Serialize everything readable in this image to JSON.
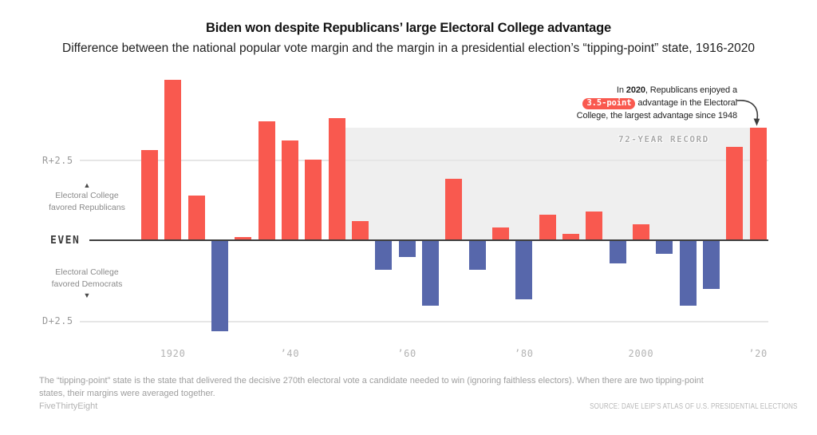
{
  "chart_data": {
    "type": "bar",
    "title": "Biden won despite Republicans’ large Electoral College advantage",
    "subtitle": "Difference between the national popular vote margin and the margin in a presidential election’s “tipping-point” state, 1916-2020",
    "unit": "percentage points; positive = Electoral College favored Republicans, negative = favored Democrats",
    "x": [
      1916,
      1920,
      1924,
      1928,
      1932,
      1936,
      1940,
      1944,
      1948,
      1952,
      1956,
      1960,
      1964,
      1968,
      1972,
      1976,
      1980,
      1984,
      1988,
      1992,
      1996,
      2000,
      2004,
      2008,
      2012,
      2016,
      2020
    ],
    "values": [
      2.8,
      5.0,
      1.4,
      -2.8,
      0.1,
      3.7,
      3.1,
      2.5,
      3.8,
      0.6,
      -0.9,
      -0.5,
      -2.0,
      1.9,
      -0.9,
      0.4,
      -1.8,
      0.8,
      0.2,
      0.9,
      -0.7,
      0.5,
      -0.4,
      -2.0,
      -1.5,
      2.9,
      3.5
    ],
    "ylim": [
      -3.0,
      5.2
    ],
    "grid": "horizontal lines at +2.5 and -2.5",
    "y_ticks": [
      {
        "value": 2.5,
        "label": "R+2.5"
      },
      {
        "value": 0,
        "label": "EVEN"
      },
      {
        "value": -2.5,
        "label": "D+2.5"
      }
    ],
    "x_tick_labels": [
      {
        "year": 1920,
        "label": "1920"
      },
      {
        "year": 1940,
        "label": "’40"
      },
      {
        "year": 1960,
        "label": "’60"
      },
      {
        "year": 1980,
        "label": "’80"
      },
      {
        "year": 2000,
        "label": "2000"
      },
      {
        "year": 2020,
        "label": "’20"
      }
    ],
    "colors": {
      "republican": "#f9594f",
      "democrat": "#5767ab",
      "record_region": "#efefef"
    },
    "direction_labels": {
      "up_icon": "▲",
      "up": [
        "Electoral College",
        "favored Republicans"
      ],
      "down": [
        "Electoral College",
        "favored Democrats"
      ],
      "down_icon": "▼"
    },
    "record_region": {
      "after_year": 1948,
      "through_year": 2020,
      "top_value": 3.5,
      "label": "72-YEAR RECORD"
    }
  },
  "annotation": {
    "line1_pre": "In ",
    "line1_bold": "2020",
    "line1_post": ", Republicans enjoyed a",
    "pill": "3.5-point",
    "line2_post": " advantage in the Electoral",
    "line3": "College, the largest advantage since 1948"
  },
  "footnote": {
    "lines": [
      "The “tipping-point” state is the state that delivered the decisive 270th electoral vote a candidate needed to win (ignoring faithless electors). When there are two tipping-point",
      "states, their margins were averaged together."
    ]
  },
  "footer": {
    "brand": "FiveThirtyEight",
    "source": "SOURCE: DAVE LEIP’S ATLAS OF U.S. PRESIDENTIAL ELECTIONS"
  }
}
